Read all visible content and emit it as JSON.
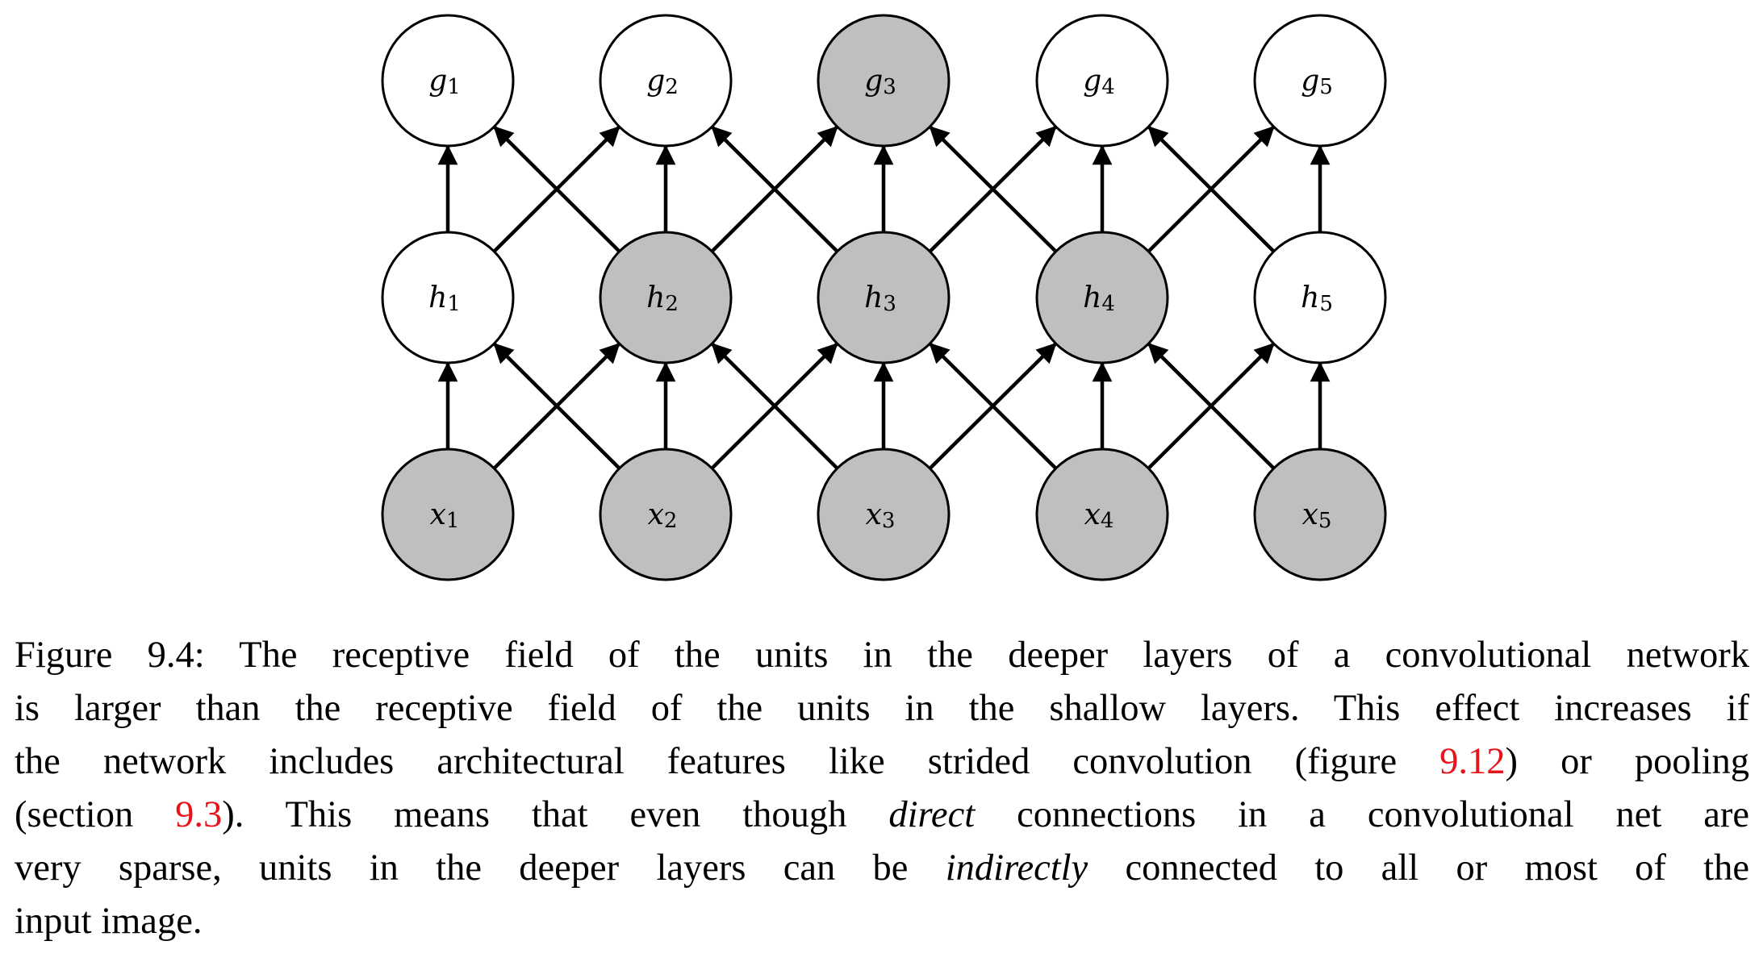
{
  "diagram": {
    "layers": [
      {
        "name": "g",
        "nodes": [
          {
            "var": "g",
            "sub": "1",
            "shaded": false
          },
          {
            "var": "g",
            "sub": "2",
            "shaded": false
          },
          {
            "var": "g",
            "sub": "3",
            "shaded": true
          },
          {
            "var": "g",
            "sub": "4",
            "shaded": false
          },
          {
            "var": "g",
            "sub": "5",
            "shaded": false
          }
        ]
      },
      {
        "name": "h",
        "nodes": [
          {
            "var": "h",
            "sub": "1",
            "shaded": false
          },
          {
            "var": "h",
            "sub": "2",
            "shaded": true
          },
          {
            "var": "h",
            "sub": "3",
            "shaded": true
          },
          {
            "var": "h",
            "sub": "4",
            "shaded": true
          },
          {
            "var": "h",
            "sub": "5",
            "shaded": false
          }
        ]
      },
      {
        "name": "x",
        "nodes": [
          {
            "var": "x",
            "sub": "1",
            "shaded": true
          },
          {
            "var": "x",
            "sub": "2",
            "shaded": true
          },
          {
            "var": "x",
            "sub": "3",
            "shaded": true
          },
          {
            "var": "x",
            "sub": "4",
            "shaded": true
          },
          {
            "var": "x",
            "sub": "5",
            "shaded": true
          }
        ]
      }
    ],
    "connections": "each unit connects to the unit directly above and its immediate left and right neighbors in the layer above",
    "colors": {
      "shaded_fill": "#bfbfbf",
      "unshaded_fill": "#ffffff",
      "stroke": "#000000"
    }
  },
  "caption": {
    "line1": "Figure 9.4: The receptive field of the units in the deeper layers of a convolutional network",
    "line2": "is larger than the receptive field of the units in the shallow layers. This effect increases if",
    "line3_a": "the network includes architectural features like strided convolution (figure ",
    "line3_ref": "9.12",
    "line3_b": ") or pooling",
    "line4_a": "(section ",
    "line4_ref": "9.3",
    "line4_b": "). This means that even though ",
    "line4_em": "direct",
    "line4_c": " connections in a convolutional net are",
    "line5_a": "very sparse, units in the deeper layers can be ",
    "line5_em": "indirectly",
    "line5_b": " connected to all or most of the",
    "line6": "input image.",
    "ref_color": "#e8141c"
  }
}
